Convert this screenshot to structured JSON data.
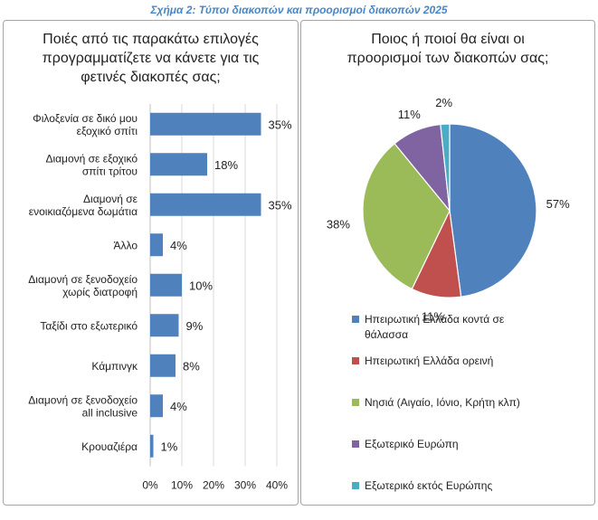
{
  "figure": {
    "title": "Σχήμα 2: Τύποι διακοπών και προορισμοί διακοπών 2025"
  },
  "colors": {
    "bar": "#4f81bd",
    "pie": [
      "#4f81bd",
      "#c0504d",
      "#9bbb59",
      "#8064a2",
      "#4bacc6"
    ]
  },
  "chart_data": [
    {
      "type": "bar",
      "orientation": "horizontal",
      "title": "Ποιές από τις παρακάτω επιλογές προγραμματίζετε να κάνετε για τις φετινές διακοπές σας;",
      "title_lines": [
        "Ποιές από τις παρακάτω επιλογές",
        "προγραμματίζετε να κάνετε για τις",
        "φετινές διακοπές σας;"
      ],
      "categories": [
        [
          "Φιλοξενία σε δικό μου",
          "εξοχικό σπίτι"
        ],
        [
          "Διαμονή σε εξοχικό",
          "σπίτι τρίτου"
        ],
        [
          "Διαμονή σε",
          "ενοικιαζόμενα δωμάτια"
        ],
        [
          "Άλλο"
        ],
        [
          "Διαμονή σε ξενοδοχείο",
          "χωρίς διατροφή"
        ],
        [
          "Ταξίδι στο εξωτερικό"
        ],
        [
          "Κάμπινγκ"
        ],
        [
          "Διαμονή σε ξενοδοχείο",
          "all inclusive"
        ],
        [
          "Κρουαζιέρα"
        ]
      ],
      "values": [
        35,
        18,
        35,
        4,
        10,
        9,
        8,
        4,
        1
      ],
      "value_labels": [
        "35%",
        "18%",
        "35%",
        "4%",
        "10%",
        "9%",
        "8%",
        "4%",
        "1%"
      ],
      "xlim": [
        0,
        40
      ],
      "xticks": [
        "0%",
        "10%",
        "20%",
        "30%",
        "40%"
      ],
      "grid": true
    },
    {
      "type": "pie",
      "title": "Ποιος ή ποιοί θα είναι οι προορισμοί των διακοπών σας;",
      "title_lines": [
        "Ποιος ή ποιοί θα είναι οι",
        "προορισμοί των διακοπών σας;"
      ],
      "labels": [
        "Ηπειρωτική Ελλάδα κοντά σε θάλασσα",
        "Ηπειρωτική Ελλάδα ορεινή",
        "Νησιά (Αιγαίο, Ιόνιο, Κρήτη κλπ)",
        "Εξωτερικό Ευρώπη",
        "Εξωτερικό εκτός Ευρώπης"
      ],
      "legend_lines": [
        [
          "Ηπειρωτική Ελλάδα κοντά σε",
          "θάλασσα"
        ],
        [
          "Ηπειρωτική Ελλάδα ορεινή"
        ],
        [
          "Νησιά (Αιγαίο, Ιόνιο, Κρήτη κλπ)"
        ],
        [
          "Εξωτερικό Ευρώπη"
        ],
        [
          "Εξωτερικό εκτός Ευρώπης"
        ]
      ],
      "values": [
        57,
        11,
        38,
        11,
        2
      ],
      "value_labels": [
        "57%",
        "11%",
        "38%",
        "11%",
        "2%"
      ],
      "legend_position": "bottom"
    }
  ]
}
